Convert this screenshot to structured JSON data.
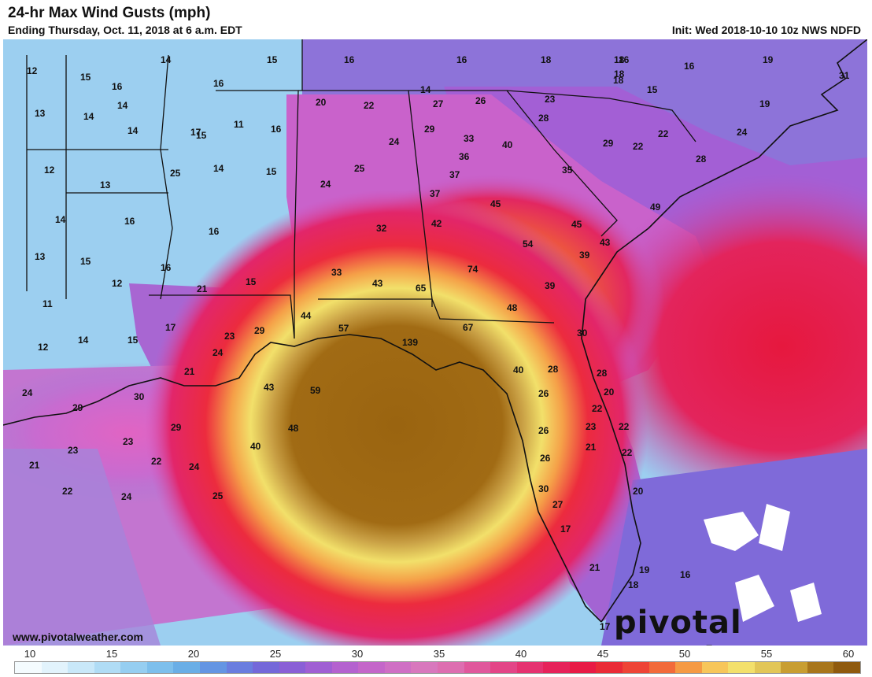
{
  "header": {
    "title": "24-hr Max Wind Gusts (mph)",
    "subtitle": "Ending Thursday, Oct. 11, 2018 at 6 a.m. EDT",
    "init": "Init: Wed 2018-10-10 10z NWS NDFD"
  },
  "footer": {
    "credit": "www.pivotalweather.com",
    "brand": "pivotal weather"
  },
  "legend": {
    "ticks": [
      "10",
      "15",
      "20",
      "25",
      "30",
      "35",
      "40",
      "45",
      "50",
      "55",
      "60"
    ],
    "colors": [
      "#f4fbfe",
      "#e2f3fc",
      "#c9e8f9",
      "#b0dcf5",
      "#96cef1",
      "#7dbfec",
      "#6aaee6",
      "#6495e3",
      "#6a7ddf",
      "#7468d9",
      "#8a5fd6",
      "#a05fd3",
      "#b462cf",
      "#c466c9",
      "#cf6fc4",
      "#d878bd",
      "#dd6eb0",
      "#e0589c",
      "#e34587",
      "#e53270",
      "#e6225a",
      "#e81a45",
      "#ea2a36",
      "#ee4436",
      "#f26a3a",
      "#f59a44",
      "#f7c65a",
      "#f3e06c",
      "#e2c658",
      "#c89e32",
      "#a8761c",
      "#8f5a0e"
    ]
  },
  "map": {
    "labels": [
      {
        "v": "12"
      },
      {
        "v": "14"
      },
      {
        "v": "15"
      },
      {
        "v": "16"
      },
      {
        "v": "16"
      },
      {
        "v": "16"
      },
      {
        "v": "14"
      },
      {
        "v": "18"
      },
      {
        "v": "18"
      },
      {
        "v": "19"
      },
      {
        "v": "15"
      },
      {
        "v": "16"
      },
      {
        "v": "16"
      },
      {
        "v": "18"
      },
      {
        "v": "16"
      },
      {
        "v": "31"
      },
      {
        "v": "13"
      },
      {
        "v": "14"
      },
      {
        "v": "14"
      },
      {
        "v": "17"
      },
      {
        "v": "11"
      },
      {
        "v": "16"
      },
      {
        "v": "20"
      },
      {
        "v": "22"
      },
      {
        "v": "27"
      },
      {
        "v": "26"
      },
      {
        "v": "23"
      },
      {
        "v": "18"
      },
      {
        "v": "15"
      },
      {
        "v": "19"
      },
      {
        "v": "14"
      },
      {
        "v": "15"
      },
      {
        "v": "25"
      },
      {
        "v": "14"
      },
      {
        "v": "15"
      },
      {
        "v": "29"
      },
      {
        "v": "33"
      },
      {
        "v": "40"
      },
      {
        "v": "28"
      },
      {
        "v": "29"
      },
      {
        "v": "22"
      },
      {
        "v": "22"
      },
      {
        "v": "24"
      },
      {
        "v": "28"
      },
      {
        "v": "12"
      },
      {
        "v": "24"
      },
      {
        "v": "25"
      },
      {
        "v": "36"
      },
      {
        "v": "37"
      },
      {
        "v": "35"
      },
      {
        "v": "14"
      },
      {
        "v": "13"
      },
      {
        "v": "16"
      },
      {
        "v": "16"
      },
      {
        "v": "24"
      },
      {
        "v": "37"
      },
      {
        "v": "45"
      },
      {
        "v": "42"
      },
      {
        "v": "32"
      },
      {
        "v": "45"
      },
      {
        "v": "49"
      },
      {
        "v": "13"
      },
      {
        "v": "15"
      },
      {
        "v": "12"
      },
      {
        "v": "16"
      },
      {
        "v": "54"
      },
      {
        "v": "43"
      },
      {
        "v": "39"
      },
      {
        "v": "11"
      },
      {
        "v": "21"
      },
      {
        "v": "15"
      },
      {
        "v": "33"
      },
      {
        "v": "43"
      },
      {
        "v": "65"
      },
      {
        "v": "74"
      },
      {
        "v": "39"
      },
      {
        "v": "17"
      },
      {
        "v": "29"
      },
      {
        "v": "44"
      },
      {
        "v": "57"
      },
      {
        "v": "48"
      },
      {
        "v": "12"
      },
      {
        "v": "14"
      },
      {
        "v": "15"
      },
      {
        "v": "23"
      },
      {
        "v": "24"
      },
      {
        "v": "67"
      },
      {
        "v": "30"
      },
      {
        "v": "139"
      },
      {
        "v": "21"
      },
      {
        "v": "40"
      },
      {
        "v": "28"
      },
      {
        "v": "28"
      },
      {
        "v": "24"
      },
      {
        "v": "29"
      },
      {
        "v": "30"
      },
      {
        "v": "43"
      },
      {
        "v": "59"
      },
      {
        "v": "26"
      },
      {
        "v": "20"
      },
      {
        "v": "22"
      },
      {
        "v": "29"
      },
      {
        "v": "48"
      },
      {
        "v": "26"
      },
      {
        "v": "23"
      },
      {
        "v": "22"
      },
      {
        "v": "23"
      },
      {
        "v": "40"
      },
      {
        "v": "23"
      },
      {
        "v": "21"
      },
      {
        "v": "22"
      },
      {
        "v": "24"
      },
      {
        "v": "26"
      },
      {
        "v": "21"
      },
      {
        "v": "22"
      },
      {
        "v": "25"
      },
      {
        "v": "30"
      },
      {
        "v": "22"
      },
      {
        "v": "27"
      },
      {
        "v": "20"
      },
      {
        "v": "24"
      },
      {
        "v": "17"
      },
      {
        "v": "21"
      },
      {
        "v": "19"
      },
      {
        "v": "16"
      },
      {
        "v": "18"
      },
      {
        "v": "17"
      }
    ]
  }
}
